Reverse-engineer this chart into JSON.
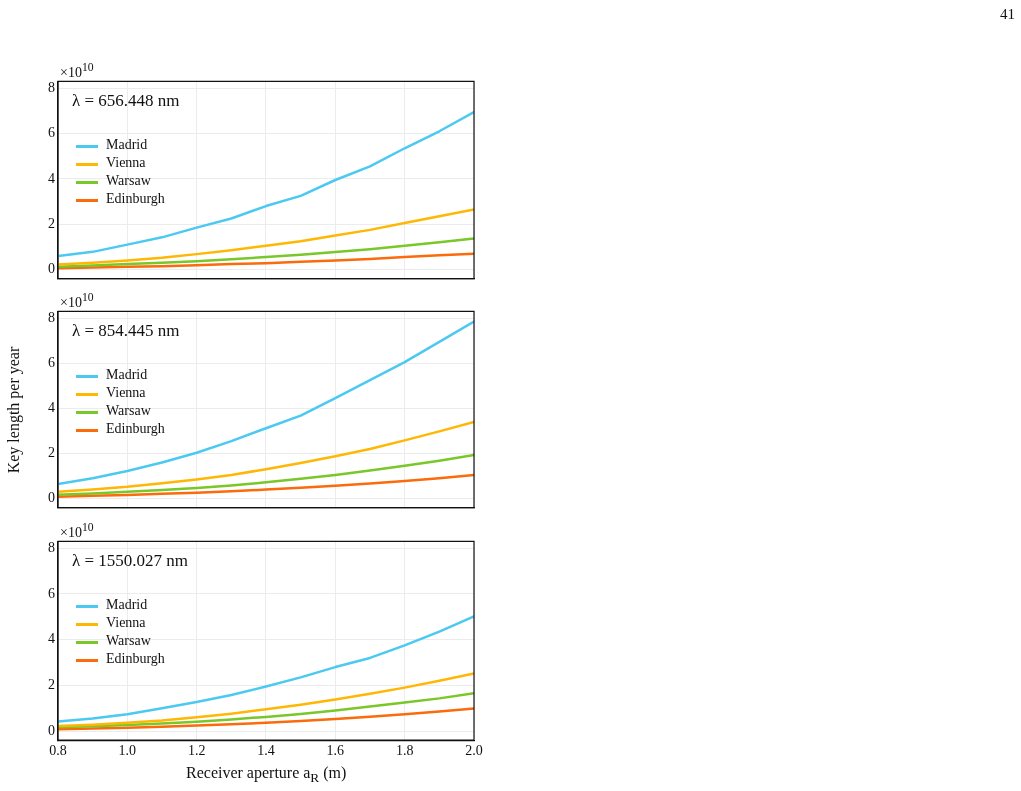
{
  "chart_data": [
    {
      "type": "line",
      "title": "λ = 656.448 nm",
      "x": [
        0.8,
        0.9,
        1.0,
        1.1,
        1.2,
        1.3,
        1.4,
        1.5,
        1.6,
        1.7,
        1.8,
        1.9,
        2.0
      ],
      "xlim": [
        0.8,
        2.0
      ],
      "xticks": [
        0.8,
        1,
        1.2,
        1.4,
        1.6,
        1.8,
        2
      ],
      "ylim": [
        -0.4,
        8.3
      ],
      "yticks": [
        0,
        2,
        4,
        6,
        8
      ],
      "grid": true,
      "legend": "top left",
      "tick_labels": "y",
      "marker": "none",
      "annotations": [
        "×10$^{10}$",
        "41"
      ],
      "series": [
        {
          "name": "Madrid",
          "color": "#4cc9f0",
          "values": [
            0.6,
            0.78,
            1.1,
            1.42,
            1.85,
            2.25,
            2.8,
            3.25,
            3.95,
            4.55,
            5.35,
            6.1,
            6.95
          ]
        },
        {
          "name": "Vienna",
          "color": "#ffb703",
          "values": [
            0.22,
            0.3,
            0.4,
            0.52,
            0.68,
            0.85,
            1.05,
            1.25,
            1.5,
            1.75,
            2.05,
            2.35,
            2.65
          ]
        },
        {
          "name": "Warsaw",
          "color": "#7ac72a",
          "values": [
            0.12,
            0.18,
            0.24,
            0.3,
            0.37,
            0.45,
            0.55,
            0.65,
            0.77,
            0.9,
            1.05,
            1.2,
            1.37
          ]
        },
        {
          "name": "Edinburgh",
          "color": "#fb6b0b",
          "values": [
            0.06,
            0.09,
            0.12,
            0.15,
            0.19,
            0.24,
            0.28,
            0.34,
            0.4,
            0.47,
            0.55,
            0.63,
            0.7
          ]
        }
      ]
    },
    {
      "type": "line",
      "title": "λ = 854.445 nm",
      "ylabel": "Key length per year",
      "x": [
        0.8,
        0.9,
        1.0,
        1.1,
        1.2,
        1.3,
        1.4,
        1.5,
        1.6,
        1.7,
        1.8,
        1.9,
        2.0
      ],
      "xlim": [
        0.8,
        2.0
      ],
      "xticks": [
        0.8,
        1,
        1.2,
        1.4,
        1.6,
        1.8,
        2
      ],
      "ylim": [
        -0.4,
        8.3
      ],
      "yticks": [
        0,
        2,
        4,
        6,
        8
      ],
      "grid": true,
      "legend": "top left",
      "tick_labels": "y",
      "marker": "none",
      "annotations": [
        "×10$^{10}$"
      ],
      "series": [
        {
          "name": "Madrid",
          "color": "#4cc9f0",
          "values": [
            0.65,
            0.9,
            1.22,
            1.6,
            2.03,
            2.55,
            3.12,
            3.68,
            4.45,
            5.25,
            6.05,
            6.95,
            7.85
          ]
        },
        {
          "name": "Vienna",
          "color": "#ffb703",
          "values": [
            0.3,
            0.4,
            0.52,
            0.68,
            0.85,
            1.05,
            1.3,
            1.58,
            1.88,
            2.2,
            2.58,
            2.98,
            3.4
          ]
        },
        {
          "name": "Warsaw",
          "color": "#7ac72a",
          "values": [
            0.17,
            0.23,
            0.3,
            0.38,
            0.47,
            0.58,
            0.72,
            0.88,
            1.05,
            1.25,
            1.46,
            1.68,
            1.93
          ]
        },
        {
          "name": "Edinburgh",
          "color": "#fb6b0b",
          "values": [
            0.08,
            0.12,
            0.16,
            0.21,
            0.26,
            0.32,
            0.4,
            0.48,
            0.57,
            0.67,
            0.78,
            0.9,
            1.05
          ]
        }
      ]
    },
    {
      "type": "line",
      "title": "λ = 1550.027 nm",
      "xlabel": "Receiver aperture a$_{R}$ (m)",
      "x": [
        0.8,
        0.9,
        1.0,
        1.1,
        1.2,
        1.3,
        1.4,
        1.5,
        1.6,
        1.7,
        1.8,
        1.9,
        2.0
      ],
      "xlim": [
        0.8,
        2.0
      ],
      "xticks": [
        {
          "value": 0.8,
          "label": "0.8"
        },
        {
          "value": 1.0,
          "label": "1.0"
        },
        {
          "value": 1.2,
          "label": "1.2"
        },
        {
          "value": 1.4,
          "label": "1.4"
        },
        {
          "value": 1.6,
          "label": "1.6"
        },
        {
          "value": 1.8,
          "label": "1.8"
        },
        {
          "value": 2.0,
          "label": "2.0"
        }
      ],
      "ylim": [
        -0.4,
        8.3
      ],
      "yticks": [
        0,
        2,
        4,
        6,
        8
      ],
      "grid": true,
      "legend": "top left",
      "marker": "none",
      "annotations": [
        "×10$^{10}$"
      ],
      "series": [
        {
          "name": "Madrid",
          "color": "#4cc9f0",
          "values": [
            0.42,
            0.55,
            0.74,
            1.0,
            1.27,
            1.58,
            1.95,
            2.35,
            2.8,
            3.2,
            3.75,
            4.35,
            5.02
          ]
        },
        {
          "name": "Vienna",
          "color": "#ffb703",
          "values": [
            0.22,
            0.28,
            0.36,
            0.46,
            0.6,
            0.76,
            0.95,
            1.15,
            1.38,
            1.63,
            1.9,
            2.2,
            2.52
          ]
        },
        {
          "name": "Warsaw",
          "color": "#7ac72a",
          "values": [
            0.17,
            0.21,
            0.26,
            0.33,
            0.41,
            0.51,
            0.62,
            0.75,
            0.9,
            1.07,
            1.25,
            1.43,
            1.65
          ]
        },
        {
          "name": "Edinburgh",
          "color": "#fb6b0b",
          "values": [
            0.08,
            0.11,
            0.15,
            0.19,
            0.24,
            0.3,
            0.36,
            0.44,
            0.53,
            0.63,
            0.74,
            0.86,
            0.99
          ]
        }
      ]
    }
  ]
}
